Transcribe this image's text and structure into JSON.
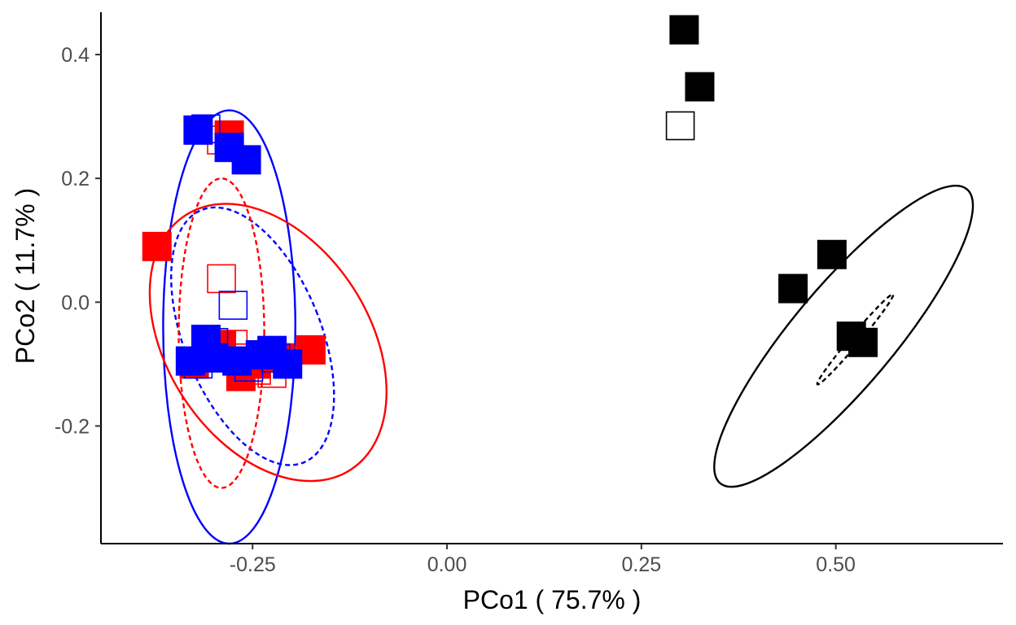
{
  "chart_data": {
    "type": "scatter",
    "title": "",
    "xlabel": "PCo1 ( 75.7% )",
    "ylabel": "PCo2 ( 11.7% )",
    "xlim": [
      -0.445,
      0.715
    ],
    "ylim": [
      -0.39,
      0.475
    ],
    "x_ticks": [
      -0.25,
      0.0,
      0.25,
      0.5
    ],
    "x_tick_labels": [
      "-0.25",
      "0.00",
      "0.25",
      "0.50"
    ],
    "y_ticks": [
      -0.2,
      0.0,
      0.2,
      0.4
    ],
    "y_tick_labels": [
      "-0.2",
      "0.0",
      "0.2",
      "0.4"
    ],
    "grid": false,
    "legend": "none",
    "colors": {
      "red": "#ff0000",
      "blue": "#0000ff",
      "black": "#000000"
    },
    "series": [
      {
        "color": "#ff0000",
        "marker": "filled-square",
        "points": [
          [
            -0.373,
            0.09
          ],
          [
            -0.28,
            0.27
          ],
          [
            -0.175,
            -0.077
          ],
          [
            -0.265,
            -0.12
          ],
          [
            -0.215,
            -0.09
          ],
          [
            -0.325,
            -0.1
          ],
          [
            -0.29,
            -0.07
          ],
          [
            -0.245,
            -0.1
          ]
        ]
      },
      {
        "color": "#ff0000",
        "marker": "open-square",
        "points": [
          [
            -0.29,
            0.038
          ],
          [
            -0.29,
            0.262
          ],
          [
            -0.275,
            -0.068
          ],
          [
            -0.245,
            -0.11
          ],
          [
            -0.225,
            -0.115
          ],
          [
            -0.3,
            -0.085
          ],
          [
            -0.27,
            -0.09
          ],
          [
            -0.205,
            -0.095
          ]
        ]
      },
      {
        "color": "#0000ff",
        "marker": "filled-square",
        "points": [
          [
            -0.32,
            0.278
          ],
          [
            -0.28,
            0.25
          ],
          [
            -0.258,
            0.23
          ],
          [
            -0.33,
            -0.095
          ],
          [
            -0.3,
            -0.09
          ],
          [
            -0.27,
            -0.095
          ],
          [
            -0.225,
            -0.078
          ],
          [
            -0.205,
            -0.1
          ],
          [
            -0.31,
            -0.06
          ],
          [
            -0.24,
            -0.085
          ]
        ]
      },
      {
        "color": "#0000ff",
        "marker": "open-square",
        "points": [
          [
            -0.275,
            -0.005
          ],
          [
            -0.31,
            0.28
          ],
          [
            -0.3,
            -0.065
          ],
          [
            -0.255,
            -0.105
          ],
          [
            -0.32,
            -0.1
          ],
          [
            -0.22,
            -0.09
          ]
        ]
      },
      {
        "color": "#000000",
        "marker": "filled-square",
        "points": [
          [
            0.305,
            0.44
          ],
          [
            0.325,
            0.348
          ],
          [
            0.495,
            0.077
          ],
          [
            0.445,
            0.022
          ],
          [
            0.52,
            -0.055
          ],
          [
            0.535,
            -0.065
          ]
        ]
      },
      {
        "color": "#000000",
        "marker": "open-square",
        "points": [
          [
            0.3,
            0.285
          ]
        ]
      }
    ],
    "ellipses": [
      {
        "color": "#0000ff",
        "style": "solid",
        "center": [
          -0.28,
          -0.04
        ],
        "semi_axes": [
          0.085,
          0.35
        ],
        "angle_deg": 0
      },
      {
        "color": "#ff0000",
        "style": "solid",
        "center": [
          -0.23,
          -0.065
        ],
        "semi_axes": [
          0.13,
          0.245
        ],
        "angle_deg": -33
      },
      {
        "color": "#0000ff",
        "style": "dashed",
        "center": [
          -0.25,
          -0.055
        ],
        "semi_axes": [
          0.088,
          0.22
        ],
        "angle_deg": -22
      },
      {
        "color": "#ff0000",
        "style": "dashed",
        "center": [
          -0.29,
          -0.05
        ],
        "semi_axes": [
          0.055,
          0.25
        ],
        "angle_deg": 0
      },
      {
        "color": "#000000",
        "style": "solid",
        "center": [
          0.51,
          -0.055
        ],
        "semi_axes": [
          0.065,
          0.31
        ],
        "angle_deg": 40
      },
      {
        "color": "#000000",
        "style": "dashed",
        "center": [
          0.525,
          -0.06
        ],
        "semi_axes": [
          0.006,
          0.095
        ],
        "angle_deg": 40
      }
    ]
  }
}
